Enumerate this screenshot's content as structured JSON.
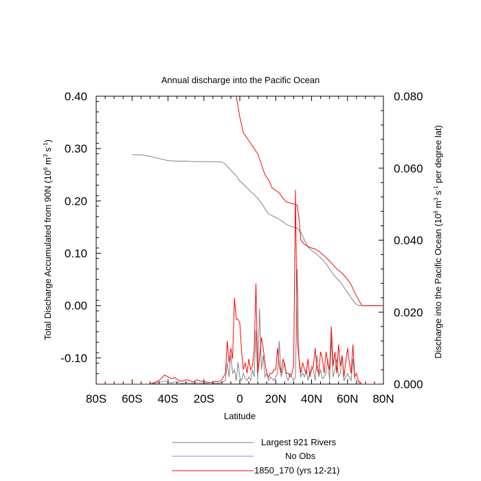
{
  "chart_data": {
    "type": "line",
    "title": "Annual discharge into the Pacific Ocean",
    "xlabel": "Latitude",
    "ylabel_left": {
      "pre": "Total Discharge Accumulated from 90N (10",
      "sup1": "6",
      "mid": " m",
      "sup2": "3",
      "mid2": " s",
      "sup3": "-1",
      "post": ")"
    },
    "ylabel_right": {
      "pre": "Discharge into the Pacific Ocean (10",
      "sup1": "6",
      "mid": " m",
      "sup2": "3",
      "mid2": " s",
      "sup3": "-1",
      "post": " per degree lat)"
    },
    "xlim": [
      -80,
      80
    ],
    "ylim_left": [
      -0.15,
      0.4
    ],
    "ylim_right": [
      0.0,
      0.08
    ],
    "x_ticks": [
      -80,
      -60,
      -40,
      -20,
      0,
      20,
      40,
      60,
      80
    ],
    "x_tick_labels": [
      "80S",
      "60S",
      "40S",
      "20S",
      "0",
      "20N",
      "40N",
      "60N",
      "80N"
    ],
    "y_left_ticks": [
      -0.1,
      0.0,
      0.1,
      0.2,
      0.3,
      0.4
    ],
    "y_left_tick_labels": [
      "-0.10",
      "0.00",
      "0.10",
      "0.20",
      "0.30",
      "0.40"
    ],
    "y_right_ticks": [
      0.0,
      0.02,
      0.04,
      0.06,
      0.08
    ],
    "y_right_tick_labels": [
      "0.000",
      "0.020",
      "0.040",
      "0.060",
      "0.080"
    ],
    "grid": false,
    "legend_position": "bottom-center",
    "legend": [
      {
        "label": "Largest 921 Rivers",
        "color": "#808080"
      },
      {
        "label": "No Obs",
        "color": "#8080ff"
      },
      {
        "label": "1850_170 (yrs 12-21)",
        "color": "#ff0000"
      }
    ],
    "series": [
      {
        "name": "Largest 921 Rivers",
        "axis": "left",
        "color": "#808080",
        "x": [
          -60,
          -55,
          -50,
          -45,
          -40,
          -35,
          -30,
          -25,
          -20,
          -15,
          -10,
          -8,
          -6,
          -4,
          -2,
          0,
          2,
          4,
          6,
          8,
          10,
          12,
          14,
          16,
          18,
          20,
          22,
          24,
          26,
          28,
          30,
          32,
          34,
          36,
          38,
          40,
          42,
          44,
          46,
          48,
          50,
          52,
          54,
          56,
          58,
          60,
          62,
          64,
          66,
          68,
          70,
          75,
          80
        ],
        "values": [
          0.288,
          0.288,
          0.285,
          0.281,
          0.277,
          0.276,
          0.276,
          0.275,
          0.275,
          0.275,
          0.274,
          0.27,
          0.262,
          0.255,
          0.248,
          0.238,
          0.232,
          0.225,
          0.218,
          0.212,
          0.205,
          0.196,
          0.185,
          0.175,
          0.172,
          0.168,
          0.165,
          0.16,
          0.155,
          0.152,
          0.15,
          0.148,
          0.14,
          0.125,
          0.112,
          0.105,
          0.1,
          0.095,
          0.088,
          0.08,
          0.07,
          0.06,
          0.052,
          0.045,
          0.035,
          0.025,
          0.015,
          0.005,
          0.0,
          0.0,
          0.0,
          0.0,
          0.0
        ]
      },
      {
        "name": "1850_170 (yrs 12-21)",
        "axis": "left",
        "color": "#ff0000",
        "x": [
          -2,
          0,
          2,
          4,
          6,
          8,
          10,
          12,
          14,
          16,
          18,
          20,
          22,
          24,
          26,
          28,
          30,
          32,
          33,
          34,
          36,
          38,
          40,
          42,
          44,
          46,
          48,
          50,
          52,
          54,
          56,
          58,
          60,
          62,
          64,
          66,
          68,
          70,
          75,
          80
        ],
        "values": [
          0.4,
          0.36,
          0.33,
          0.32,
          0.31,
          0.3,
          0.29,
          0.27,
          0.25,
          0.24,
          0.225,
          0.22,
          0.215,
          0.205,
          0.198,
          0.196,
          0.194,
          0.192,
          0.165,
          0.125,
          0.117,
          0.113,
          0.11,
          0.108,
          0.104,
          0.098,
          0.092,
          0.085,
          0.078,
          0.07,
          0.065,
          0.058,
          0.05,
          0.04,
          0.025,
          0.012,
          0.0,
          0.0,
          0.0,
          0.0
        ]
      },
      {
        "name": "Largest 921 Rivers",
        "axis": "right",
        "color": "#808080",
        "x": [
          -80,
          -70,
          -60,
          -50,
          -45,
          -42,
          -40,
          -38,
          -36,
          -34,
          -32,
          -30,
          -28,
          -26,
          -24,
          -22,
          -20,
          -18,
          -16,
          -14,
          -12,
          -10,
          -8,
          -7,
          -6,
          -5,
          -4,
          -3,
          -2,
          -1,
          0,
          1,
          2,
          3,
          4,
          5,
          6,
          7,
          8,
          9,
          10,
          11,
          12,
          13,
          14,
          15,
          16,
          17,
          18,
          19,
          20,
          21,
          22,
          23,
          24,
          25,
          26,
          27,
          28,
          29,
          30,
          31,
          32,
          33,
          34,
          35,
          36,
          37,
          38,
          39,
          40,
          41,
          42,
          43,
          44,
          45,
          46,
          47,
          48,
          49,
          50,
          51,
          52,
          53,
          54,
          55,
          56,
          57,
          58,
          59,
          60,
          61,
          62,
          63,
          64,
          65,
          66,
          67,
          68,
          70,
          80
        ],
        "values": [
          0.0,
          0.0,
          0.0,
          0.0,
          0.0005,
          0.0008,
          0.0005,
          0.0003,
          0.0006,
          0.0004,
          0.0002,
          0.0004,
          0.0003,
          0.0002,
          0.0004,
          0.0002,
          0.0003,
          0.0002,
          0.0001,
          0.0003,
          0.0002,
          0.0005,
          0.001,
          0.006,
          0.002,
          0.008,
          0.003,
          0.004,
          0.001,
          0.006,
          0.002,
          0.001,
          0.003,
          0.0015,
          0.001,
          0.002,
          0.001,
          0.004,
          0.002,
          0.015,
          0.001,
          0.021,
          0.004,
          0.008,
          0.002,
          0.003,
          0.001,
          0.002,
          0.0015,
          0.001,
          0.002,
          0.003,
          0.012,
          0.002,
          0.004,
          0.006,
          0.002,
          0.001,
          0.003,
          0.002,
          0.001,
          0.002,
          0.032,
          0.006,
          0.002,
          0.003,
          0.002,
          0.004,
          0.001,
          0.003,
          0.005,
          0.004,
          0.001,
          0.008,
          0.002,
          0.004,
          0.0015,
          0.002,
          0.003,
          0.007,
          0.001,
          0.013,
          0.002,
          0.004,
          0.007,
          0.002,
          0.003,
          0.008,
          0.001,
          0.002,
          0.003,
          0.002,
          0.001,
          0.007,
          0.0015,
          0.001,
          0.0005,
          0.0002,
          0.0,
          0.0,
          0.0
        ]
      },
      {
        "name": "1850_170 (yrs 12-21)",
        "axis": "right",
        "color": "#ff0000",
        "x": [
          -80,
          -70,
          -60,
          -50,
          -45,
          -42,
          -40,
          -38,
          -36,
          -34,
          -32,
          -30,
          -28,
          -26,
          -24,
          -22,
          -20,
          -18,
          -16,
          -14,
          -12,
          -10,
          -8,
          -7,
          -6,
          -5,
          -4,
          -3,
          -2,
          -1,
          0,
          1,
          2,
          3,
          4,
          5,
          6,
          7,
          8,
          9,
          10,
          11,
          12,
          13,
          14,
          15,
          16,
          17,
          18,
          19,
          20,
          21,
          22,
          23,
          24,
          25,
          26,
          27,
          28,
          29,
          30,
          31,
          32,
          33,
          34,
          35,
          36,
          37,
          38,
          39,
          40,
          41,
          42,
          43,
          44,
          45,
          46,
          47,
          48,
          49,
          50,
          51,
          52,
          53,
          54,
          55,
          56,
          57,
          58,
          59,
          60,
          61,
          62,
          63,
          64,
          65,
          66,
          67,
          68,
          70,
          80
        ],
        "values": [
          0.0,
          0.0,
          0.0,
          0.0,
          0.001,
          0.0025,
          0.002,
          0.0015,
          0.0018,
          0.001,
          0.0008,
          0.0012,
          0.001,
          0.0006,
          0.0012,
          0.0008,
          0.0007,
          0.0005,
          0.0004,
          0.0008,
          0.0006,
          0.0012,
          0.003,
          0.012,
          0.006,
          0.01,
          0.007,
          0.024,
          0.018,
          0.018,
          0.017,
          0.009,
          0.004,
          0.006,
          0.003,
          0.007,
          0.004,
          0.005,
          0.009,
          0.028,
          0.003,
          0.007,
          0.013,
          0.01,
          0.006,
          0.003,
          0.002,
          0.003,
          0.003,
          0.004,
          0.004,
          0.01,
          0.005,
          0.003,
          0.007,
          0.005,
          0.003,
          0.003,
          0.002,
          0.003,
          0.005,
          0.054,
          0.012,
          0.007,
          0.003,
          0.006,
          0.004,
          0.003,
          0.007,
          0.002,
          0.004,
          0.005,
          0.01,
          0.004,
          0.003,
          0.009,
          0.007,
          0.003,
          0.009,
          0.006,
          0.004,
          0.016,
          0.005,
          0.009,
          0.003,
          0.011,
          0.005,
          0.008,
          0.002,
          0.006,
          0.01,
          0.006,
          0.003,
          0.011,
          0.002,
          0.003,
          0.001,
          0.0005,
          0.0,
          0.0,
          0.0
        ]
      }
    ]
  }
}
